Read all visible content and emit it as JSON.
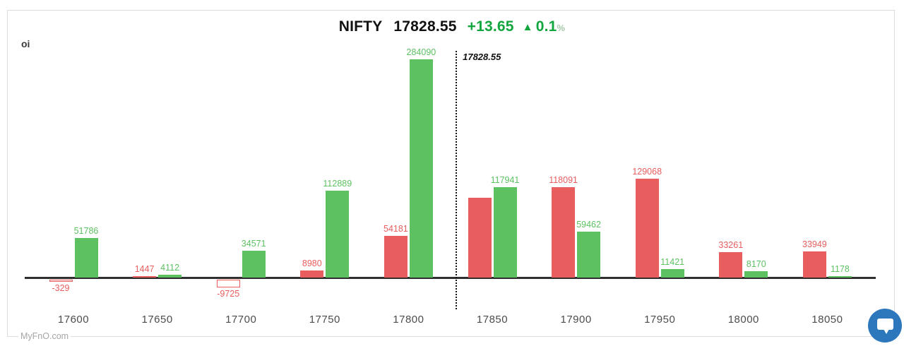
{
  "header": {
    "symbol": "NIFTY",
    "price": "17828.55",
    "change": "+13.65",
    "arrow": "▲",
    "change_pct": "0.1",
    "pct_sign": "%"
  },
  "axis_label": "oi",
  "watermark": "MyFnO.com",
  "colors": {
    "red": "#e85d5d",
    "green": "#5dc162",
    "title_green": "#12a63e",
    "axis": "#2f2f2f",
    "chat_blue": "#2d78bd"
  },
  "chart_data": {
    "type": "bar",
    "title": "NIFTY 17828.55 +13.65 ▲ 0.1%",
    "ylabel": "oi",
    "grid": false,
    "legend": "none",
    "categories": [
      "17600",
      "17650",
      "17700",
      "17750",
      "17800",
      "17850",
      "17900",
      "17950",
      "18000",
      "18050"
    ],
    "series": [
      {
        "name": "red",
        "color": "#e85d5d",
        "values": [
          -329,
          1447,
          -9725,
          8980,
          54181,
          104000,
          118091,
          129068,
          33261,
          33949
        ],
        "labels": [
          "-329",
          "1447",
          "-9725",
          "8980",
          "54181",
          "",
          "118091",
          "129068",
          "33261",
          "33949"
        ],
        "note": "17850 bar shows no printed label; value estimated from bar height"
      },
      {
        "name": "green",
        "color": "#5dc162",
        "values": [
          51786,
          4112,
          34571,
          112889,
          284090,
          117941,
          59462,
          11421,
          8170,
          1178
        ],
        "labels": [
          "51786",
          "4112",
          "34571",
          "112889",
          "284090",
          "117941",
          "59462",
          "11421",
          "8170",
          "1178"
        ]
      }
    ],
    "negative_bar_style": "hollow",
    "spot_value": 17828.55,
    "spot_label": "17828.55"
  }
}
